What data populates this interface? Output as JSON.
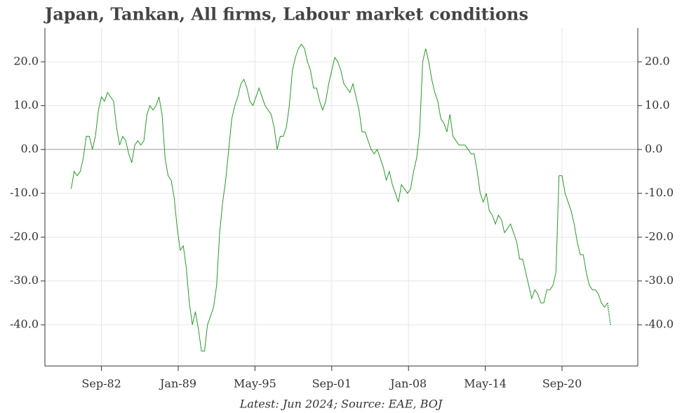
{
  "chart_data": {
    "type": "line",
    "title": "Japan, Tankan, All firms, Labour market conditions",
    "footnote": "Latest: Jun 2024; Source: EAE, BOJ",
    "x": [
      "1980-03",
      "1980-06",
      "1980-09",
      "1980-12",
      "1981-03",
      "1981-06",
      "1981-09",
      "1981-12",
      "1982-03",
      "1982-06",
      "1982-09",
      "1982-12",
      "1983-03",
      "1983-06",
      "1983-09",
      "1983-12",
      "1984-03",
      "1984-06",
      "1984-09",
      "1984-12",
      "1985-03",
      "1985-06",
      "1985-09",
      "1985-12",
      "1986-03",
      "1986-06",
      "1986-09",
      "1986-12",
      "1987-03",
      "1987-06",
      "1987-09",
      "1987-12",
      "1988-03",
      "1988-06",
      "1988-09",
      "1988-12",
      "1989-03",
      "1989-06",
      "1989-09",
      "1989-12",
      "1990-03",
      "1990-06",
      "1990-09",
      "1990-12",
      "1991-03",
      "1991-06",
      "1991-09",
      "1991-12",
      "1992-03",
      "1992-06",
      "1992-09",
      "1992-12",
      "1993-03",
      "1993-06",
      "1993-09",
      "1993-12",
      "1994-03",
      "1994-06",
      "1994-09",
      "1994-12",
      "1995-03",
      "1995-06",
      "1995-09",
      "1995-12",
      "1996-03",
      "1996-06",
      "1996-09",
      "1996-12",
      "1997-03",
      "1997-06",
      "1997-09",
      "1997-12",
      "1998-03",
      "1998-06",
      "1998-09",
      "1998-12",
      "1999-03",
      "1999-06",
      "1999-09",
      "1999-12",
      "2000-03",
      "2000-06",
      "2000-09",
      "2000-12",
      "2001-03",
      "2001-06",
      "2001-09",
      "2001-12",
      "2002-03",
      "2002-06",
      "2002-09",
      "2002-12",
      "2003-03",
      "2003-06",
      "2003-09",
      "2003-12",
      "2004-03",
      "2004-06",
      "2004-09",
      "2004-12",
      "2005-03",
      "2005-06",
      "2005-09",
      "2005-12",
      "2006-03",
      "2006-06",
      "2006-09",
      "2006-12",
      "2007-03",
      "2007-06",
      "2007-09",
      "2007-12",
      "2008-03",
      "2008-06",
      "2008-09",
      "2008-12",
      "2009-03",
      "2009-06",
      "2009-09",
      "2009-12",
      "2010-03",
      "2010-06",
      "2010-09",
      "2010-12",
      "2011-03",
      "2011-06",
      "2011-09",
      "2011-12",
      "2012-03",
      "2012-06",
      "2012-09",
      "2012-12",
      "2013-03",
      "2013-06",
      "2013-09",
      "2013-12",
      "2014-03",
      "2014-06",
      "2014-09",
      "2014-12",
      "2015-03",
      "2015-06",
      "2015-09",
      "2015-12",
      "2016-03",
      "2016-06",
      "2016-09",
      "2016-12",
      "2017-03",
      "2017-06",
      "2017-09",
      "2017-12",
      "2018-03",
      "2018-06",
      "2018-09",
      "2018-12",
      "2019-03",
      "2019-06",
      "2019-09",
      "2019-12",
      "2020-03",
      "2020-06",
      "2020-09",
      "2020-12",
      "2021-03",
      "2021-06",
      "2021-09",
      "2021-12",
      "2022-03",
      "2022-06",
      "2022-09",
      "2022-12",
      "2023-03",
      "2023-06",
      "2023-09",
      "2023-12",
      "2024-03",
      "2024-06"
    ],
    "series": [
      {
        "color": "#2a9a2a",
        "values": [
          -9,
          -5,
          -6,
          -5,
          -2,
          3,
          3,
          0,
          3,
          9,
          12,
          11,
          13,
          12,
          11,
          5,
          1,
          3,
          2,
          -1,
          -3,
          1,
          2,
          1,
          2,
          8,
          10,
          9,
          10,
          12,
          8,
          -2,
          -6,
          -7,
          -11,
          -18,
          -23,
          -22,
          -27,
          -35,
          -40,
          -37,
          -41,
          -46,
          -46,
          -40,
          -38,
          -36,
          -31,
          -19,
          -12,
          -7,
          0,
          7,
          10,
          12,
          15,
          16,
          14,
          11,
          10,
          12,
          14,
          12,
          10,
          9,
          8,
          5,
          0,
          3,
          3,
          5,
          10,
          18,
          21,
          23,
          24,
          23,
          20,
          18,
          14,
          14,
          11,
          9,
          11,
          15,
          18,
          21,
          20,
          18,
          15,
          14,
          13,
          15,
          12,
          9,
          4,
          4,
          2,
          0,
          -1,
          0,
          -2,
          -4,
          -7,
          -5,
          -8,
          -10,
          -12,
          -8,
          -9,
          -10,
          -9,
          -5,
          -2,
          4,
          20,
          23,
          20,
          16,
          13,
          11,
          7,
          6,
          4,
          8,
          3,
          2,
          1,
          1,
          1,
          0,
          -1,
          -1,
          -5,
          -10,
          -12,
          -10,
          -14,
          -15,
          -17,
          -15,
          -16,
          -19,
          -18,
          -17,
          -19,
          -21,
          -25,
          -25,
          -28,
          -31,
          -34,
          -32,
          -33,
          -35,
          -35,
          -32,
          -32,
          -31,
          -28,
          -6,
          -6,
          -10,
          -12,
          -14,
          -17,
          -21,
          -24,
          -24,
          -28,
          -31,
          -32,
          -32,
          -33,
          -35,
          -36,
          -35
        ]
      },
      {
        "color": "#2a9a2a",
        "dash": "dotted",
        "x": [
          "2024-06",
          "2024-09"
        ],
        "values": [
          -35,
          -40
        ]
      }
    ],
    "xlim": [
      "1978-01",
      "2026-12"
    ],
    "xticks": [
      {
        "value": "1982-09",
        "label": "Sep-82"
      },
      {
        "value": "1989-01",
        "label": "Jan-89"
      },
      {
        "value": "1995-05",
        "label": "May-95"
      },
      {
        "value": "2001-09",
        "label": "Sep-01"
      },
      {
        "value": "2008-01",
        "label": "Jan-08"
      },
      {
        "value": "2014-05",
        "label": "May-14"
      },
      {
        "value": "2020-09",
        "label": "Sep-20"
      }
    ],
    "ylim": [
      -49.4,
      27.7
    ],
    "yticks": [
      {
        "value": -40,
        "label": "-40.0"
      },
      {
        "value": -30,
        "label": "-30.0"
      },
      {
        "value": -20,
        "label": "-20.0"
      },
      {
        "value": -10,
        "label": "-10.0"
      },
      {
        "value": 0,
        "label": "0.0"
      },
      {
        "value": 10,
        "label": "10.0"
      },
      {
        "value": 20,
        "label": "20.0"
      }
    ],
    "grid": true,
    "right_axis": true
  }
}
